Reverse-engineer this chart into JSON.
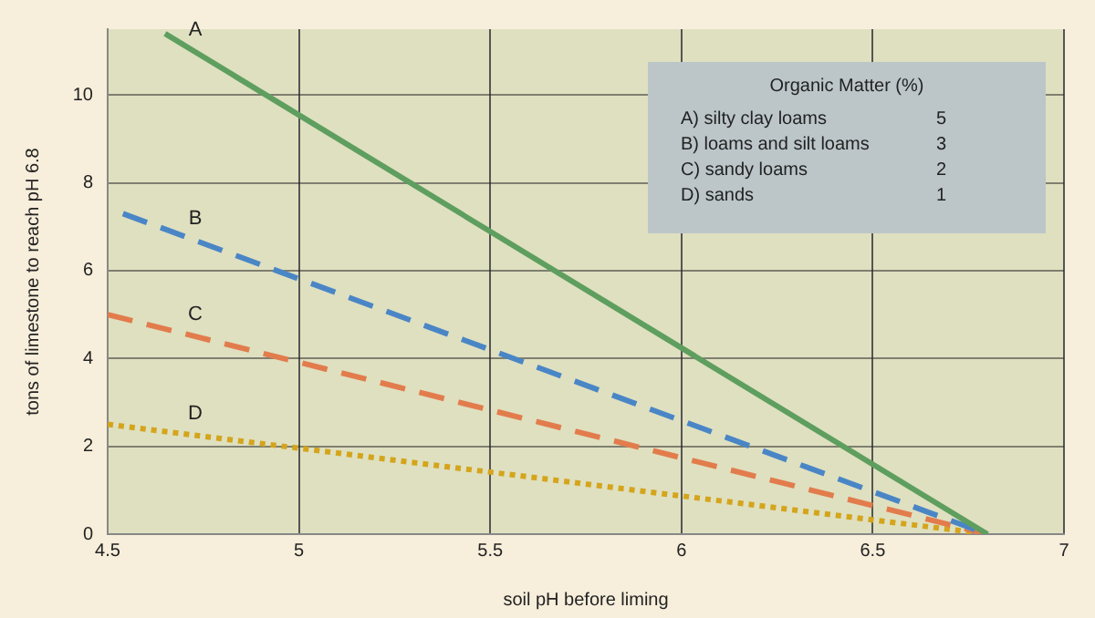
{
  "chart_data": {
    "type": "line",
    "xlabel": "soil pH before liming",
    "ylabel": "tons of limestone to reach pH 6.8",
    "xlim": [
      4.5,
      7
    ],
    "xticks": [
      4.5,
      5,
      5.5,
      6,
      6.5,
      7
    ],
    "ylim": [
      0,
      11.5
    ],
    "yticks": [
      0,
      2,
      4,
      6,
      8,
      10
    ],
    "grid": true,
    "marker": "none",
    "series": [
      {
        "name": "A",
        "color": "#5e9e5e",
        "x": [
          4.65,
          6.8
        ],
        "values": [
          11.4,
          0
        ],
        "line_style": "solid"
      },
      {
        "name": "B",
        "color": "#4a86c6",
        "x": [
          4.54,
          6.8
        ],
        "values": [
          7.3,
          0
        ],
        "line_style": "dashed"
      },
      {
        "name": "C",
        "color": "#e27c4c",
        "x": [
          4.5,
          6.8
        ],
        "values": [
          5,
          0
        ],
        "line_style": "dashed"
      },
      {
        "name": "D",
        "color": "#d4a51c",
        "x": [
          4.5,
          6.8
        ],
        "values": [
          2.5,
          0
        ],
        "line_style": "dotted"
      }
    ],
    "annotations": [
      "Organic Matter (%)",
      "A) silty clay loams",
      "5",
      "B) loams and silt loams",
      "3",
      "C) sandy loams",
      "2",
      "D) sands",
      "1"
    ]
  }
}
